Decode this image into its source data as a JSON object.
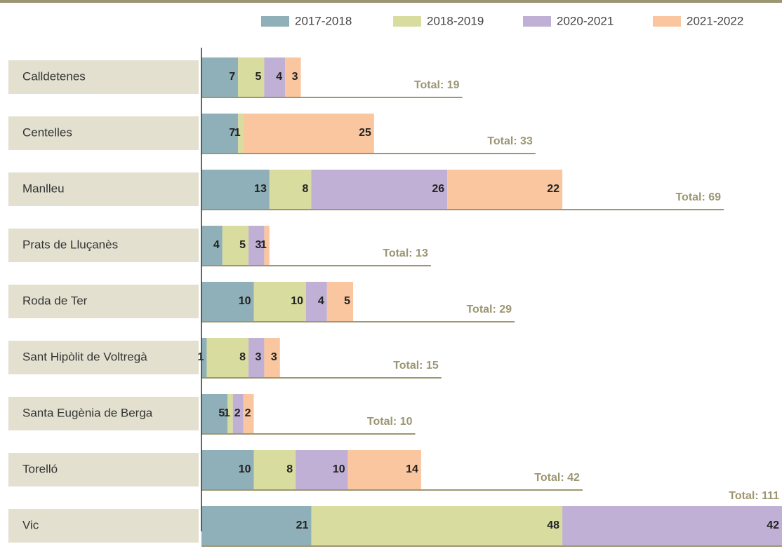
{
  "chart_data": {
    "type": "stacked-bar-horizontal",
    "categories": [
      "Calldetenes",
      "Centelles",
      "Manlleu",
      "Prats de Lluçanès",
      "Roda de Ter",
      "Sant Hipòlit de Voltregà",
      "Santa Eugènia de Berga",
      "Torelló",
      "Vic"
    ],
    "series": [
      {
        "name": "2017-2018",
        "color": "#8fb0b8",
        "values": [
          7,
          7,
          13,
          4,
          10,
          1,
          5,
          10,
          21
        ]
      },
      {
        "name": "2018-2019",
        "color": "#d8dc9e",
        "values": [
          5,
          1,
          8,
          5,
          10,
          8,
          1,
          8,
          48
        ]
      },
      {
        "name": "2020-2021",
        "color": "#c0b0d6",
        "values": [
          4,
          null,
          26,
          3,
          4,
          3,
          2,
          10,
          42
        ]
      },
      {
        "name": "2021-2022",
        "color": "#f9c6a0",
        "values": [
          3,
          25,
          22,
          1,
          5,
          3,
          2,
          14,
          null
        ]
      }
    ],
    "totals": [
      19,
      33,
      69,
      13,
      29,
      15,
      10,
      42,
      111
    ],
    "total_labels": [
      "Total: 19",
      "Total: 33",
      "Total: 69",
      "Total: 13",
      "Total: 29",
      "Total: 15",
      "Total: 10",
      "Total: 42",
      "Total: 111"
    ],
    "xlim": [
      0,
      111
    ],
    "legend": "top-right"
  }
}
